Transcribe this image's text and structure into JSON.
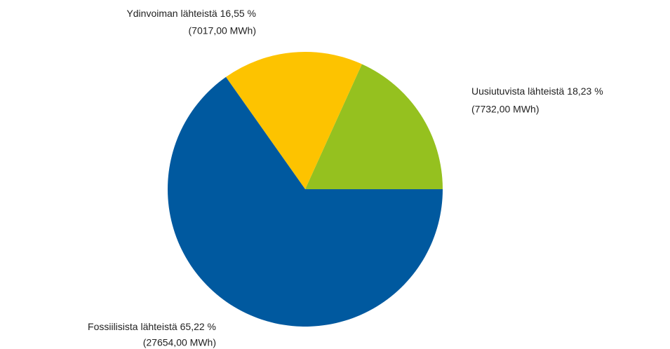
{
  "chart_data": {
    "type": "pie",
    "categories": [
      "Uusiutuvista lähteistä",
      "Ydinvoiman lähteistä",
      "Fossiilisista lähteistä"
    ],
    "values": [
      18.23,
      16.55,
      65.22
    ],
    "value_labels": [
      "18,23 %",
      "16,55 %",
      "65,22 %"
    ],
    "energy_mwh": [
      7732,
      7017,
      27654
    ],
    "energy_labels": [
      "(7732,00 MWh)",
      "(7017,00 MWh)",
      "(27654,00 MWh)"
    ],
    "colors": [
      "#95c11f",
      "#fdc300",
      "#00599f"
    ]
  }
}
